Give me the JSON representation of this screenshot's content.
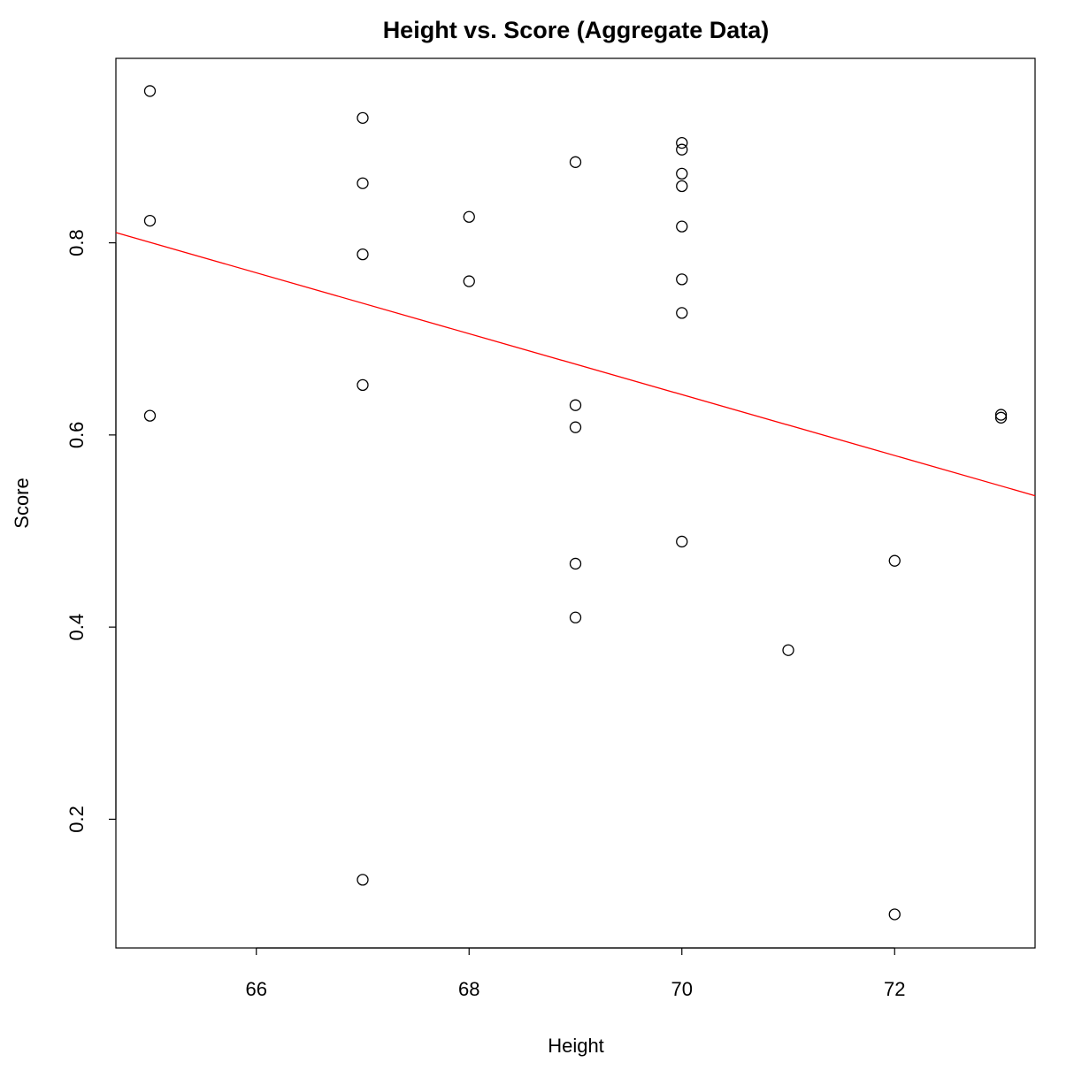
{
  "chart_data": {
    "type": "scatter",
    "title": "Height vs. Score (Aggregate Data)",
    "x_label": "Height",
    "y_label": "Score",
    "x": [
      65,
      65,
      65,
      67,
      67,
      67,
      67,
      67,
      68,
      68,
      69,
      69,
      69,
      69,
      69,
      70,
      70,
      70,
      70,
      70,
      70,
      70,
      70,
      71,
      72,
      72,
      73,
      73
    ],
    "values": [
      0.958,
      0.823,
      0.62,
      0.93,
      0.862,
      0.788,
      0.652,
      0.137,
      0.827,
      0.76,
      0.884,
      0.631,
      0.608,
      0.466,
      0.41,
      0.904,
      0.897,
      0.872,
      0.859,
      0.817,
      0.762,
      0.727,
      0.489,
      0.376,
      0.469,
      0.101,
      0.621,
      0.618
    ],
    "color": "#000000",
    "fit": {
      "intercept": 2.861,
      "slope": -0.0317,
      "color": "#ff0000"
    },
    "xlim": [
      64.68,
      73.32
    ],
    "xticks": [
      66,
      68,
      70,
      72
    ],
    "ylim": [
      0.066,
      0.992
    ],
    "yticks": [
      0.2,
      0.4,
      0.6,
      0.8
    ]
  }
}
